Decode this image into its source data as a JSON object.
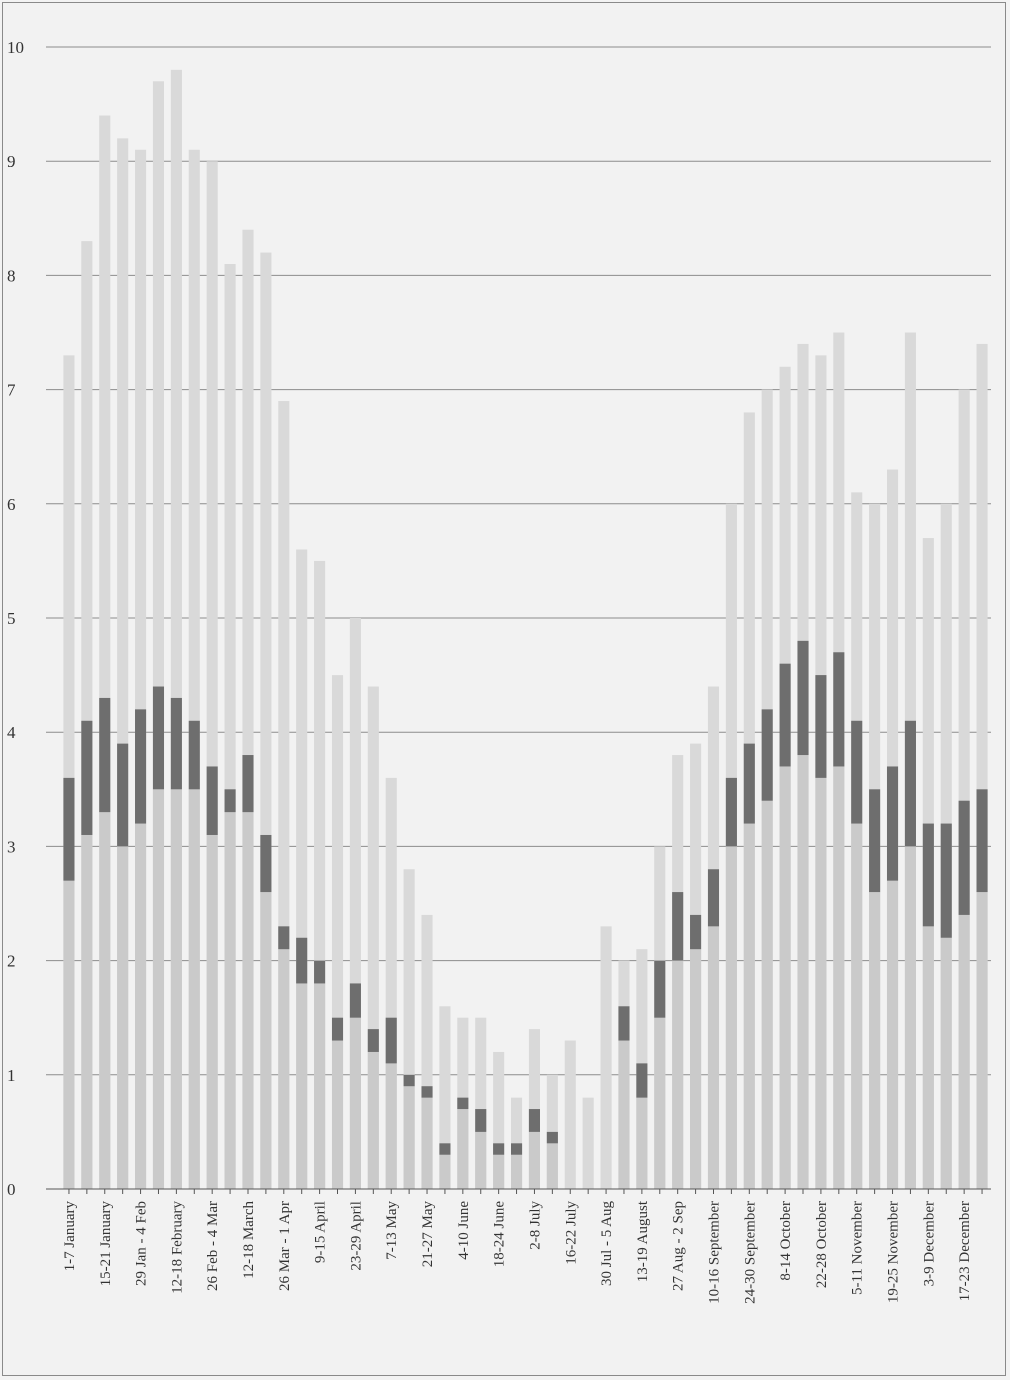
{
  "chart_data": {
    "type": "bar",
    "title": "",
    "xlabel": "",
    "ylabel": "",
    "ylim": [
      0,
      10
    ],
    "yticks": [
      "0",
      "1",
      "2",
      "3",
      "4",
      "5",
      "6",
      "7",
      "8",
      "9",
      "10"
    ],
    "grid": true,
    "categories": [
      "1-7 January",
      "8-14 January",
      "15-21 January",
      "22-28 January",
      "29 Jan - 4 Feb",
      "5-11 February",
      "12-18 February",
      "19-25 February",
      "26 Feb - 4 Mar",
      "5-11 March",
      "12-18 March",
      "19-25 March",
      "26 Mar - 1 Apr",
      "2-8 April",
      "9-15 April",
      "16-22 April",
      "23-29 April",
      "30 Apr - 6 May",
      "7-13 May",
      "14-20 May",
      "21-27 May",
      "28 May - 3 June",
      "4-10 June",
      "11-17 June",
      "18-24 June",
      "25 June - 1 July",
      "2-8 July",
      "9-15 July",
      "16-22 July",
      "23-29 July",
      "30 Jul - 5 Aug",
      "6-12 August",
      "13-19 August",
      "20-26 August",
      "27 Aug - 2 Sep",
      "3-9 September",
      "10-16 September",
      "17-23 September",
      "24-30 September",
      "1-7 October",
      "8-14 October",
      "15-21 October",
      "22-28 October",
      "29 Oct - 4 Nov",
      "5-11 November",
      "12-18 November",
      "19-25 November",
      "26 Nov - 2 Dec",
      "3-9 December",
      "10-16 December",
      "17-23 December",
      "24-31 December"
    ],
    "category_labels_shown": [
      "1-7 January",
      "15-21 January",
      "29 Jan - 4 Feb",
      "12-18 February",
      "26 Feb - 4 Mar",
      "12-18 March",
      "26 Mar - 1 Apr",
      "9-15 April",
      "23-29 April",
      "7-13 May",
      "21-27 May",
      "4-10 June",
      "18-24 June",
      "2-8 July",
      "16-22 July",
      "30 Jul - 5 Aug",
      "13-19 August",
      "27 Aug - 2 Sep",
      "10-16 September",
      "24-30 September",
      "8-14 October",
      "22-28 October",
      "5-11 November",
      "19-25 November",
      "3-9 December",
      "17-23 December"
    ],
    "series": [
      {
        "role": "range-max",
        "values": [
          7.3,
          8.3,
          9.4,
          9.2,
          9.1,
          9.7,
          9.8,
          9.1,
          9.0,
          8.1,
          8.4,
          8.2,
          6.9,
          5.6,
          5.5,
          4.5,
          5.0,
          4.4,
          3.6,
          2.8,
          2.4,
          1.6,
          1.5,
          1.5,
          1.2,
          0.8,
          1.4,
          1.0,
          1.3,
          0.8,
          2.3,
          2.0,
          2.1,
          3.0,
          3.8,
          3.9,
          4.4,
          6.0,
          6.8,
          7.0,
          7.2,
          7.4,
          7.3,
          7.5,
          6.1,
          6.0,
          6.3,
          7.5,
          5.7,
          6.0,
          7.0,
          7.4
        ]
      },
      {
        "role": "box-low",
        "values": [
          2.7,
          3.1,
          3.3,
          3.0,
          3.2,
          3.5,
          3.5,
          3.5,
          3.1,
          3.3,
          3.3,
          2.6,
          2.1,
          1.8,
          1.8,
          1.3,
          1.5,
          1.2,
          1.1,
          0.9,
          0.8,
          0.3,
          0.7,
          0.5,
          0.3,
          0.3,
          0.5,
          0.4,
          0.0,
          0.0,
          0.0,
          1.3,
          0.8,
          1.5,
          2.0,
          2.1,
          2.3,
          3.0,
          3.2,
          3.4,
          3.7,
          3.8,
          3.6,
          3.7,
          3.2,
          2.6,
          2.7,
          3.0,
          2.3,
          2.2,
          2.4,
          2.6
        ]
      },
      {
        "role": "box-high",
        "values": [
          3.6,
          4.1,
          4.3,
          3.9,
          4.2,
          4.4,
          4.3,
          4.1,
          3.7,
          3.5,
          3.8,
          3.1,
          2.3,
          2.2,
          2.0,
          1.5,
          1.8,
          1.4,
          1.5,
          1.0,
          0.9,
          0.4,
          0.8,
          0.7,
          0.4,
          0.4,
          0.7,
          0.5,
          0.0,
          0.0,
          0.0,
          1.6,
          1.1,
          2.0,
          2.6,
          2.4,
          2.8,
          3.6,
          3.9,
          4.2,
          4.6,
          4.8,
          4.5,
          4.7,
          4.1,
          3.5,
          3.7,
          4.1,
          3.2,
          3.2,
          3.4,
          3.5
        ]
      }
    ]
  }
}
